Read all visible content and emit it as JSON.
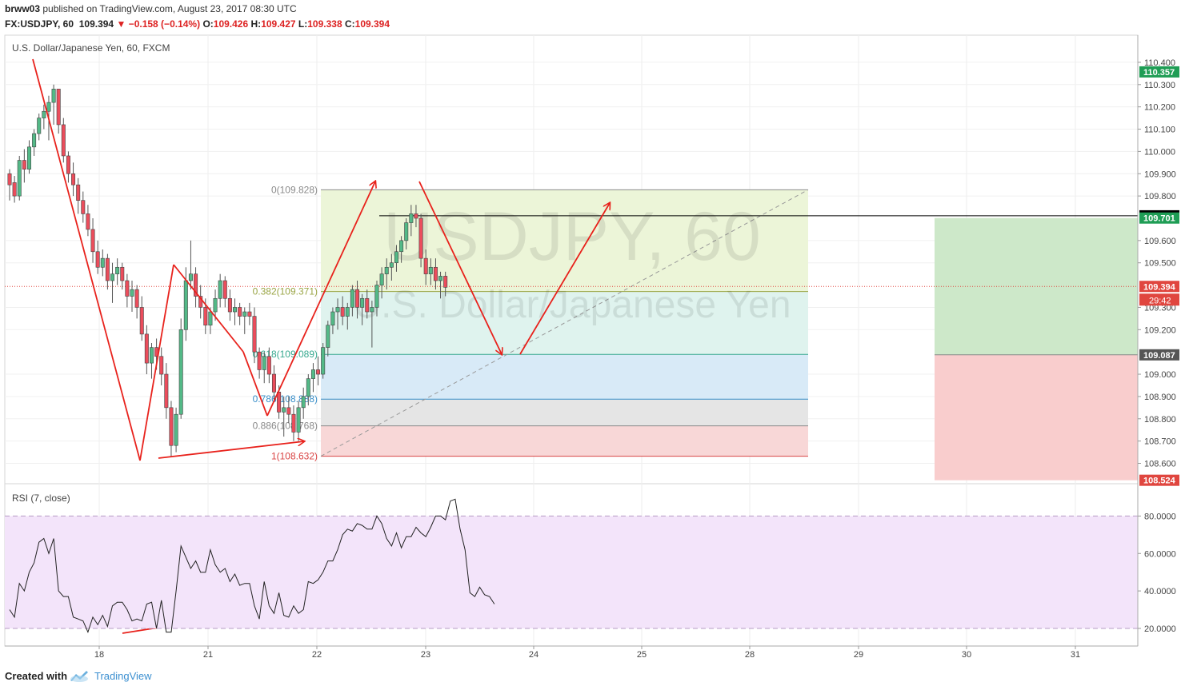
{
  "header": {
    "username": "brww03",
    "published_text": "published on TradingView.com, August 23, 2017 08:30 UTC",
    "symbol": "FX:USDJPY, 60",
    "last": "109.394",
    "change": "−0.158 (−0.14%)",
    "o_label": "O:",
    "o_value": "109.426",
    "h_label": "H:",
    "h_value": "109.427",
    "l_label": "L:",
    "l_value": "109.338",
    "c_label": "C:",
    "c_value": "109.394"
  },
  "footer": {
    "created_with": "Created with",
    "brand": "TradingView"
  },
  "chart_data": [
    {
      "type": "candlestick",
      "title": "U.S. Dollar/Japanese Yen, 60, FXCM",
      "watermark_symbol": "USDJPY, 60",
      "watermark_name": "U.S. Dollar/Japanese Yen",
      "x_ticks": [
        "18",
        "21",
        "22",
        "23",
        "24",
        "25",
        "28",
        "29",
        "30",
        "31"
      ],
      "y_ticks": [
        "110.400",
        "110.300",
        "110.200",
        "110.100",
        "110.000",
        "109.900",
        "109.800",
        "109.600",
        "109.500",
        "109.300",
        "109.200",
        "109.000",
        "108.900",
        "108.800",
        "108.700",
        "108.600"
      ],
      "ylim": [
        108.53,
        110.45
      ],
      "up_color": "#53b987",
      "down_color": "#eb4d5c",
      "ohlc": [
        [
          109.9,
          109.92,
          109.78,
          109.85
        ],
        [
          109.86,
          109.89,
          109.77,
          109.8
        ],
        [
          109.8,
          109.98,
          109.78,
          109.96
        ],
        [
          109.96,
          110.01,
          109.86,
          109.92
        ],
        [
          109.92,
          110.05,
          109.9,
          110.02
        ],
        [
          110.02,
          110.1,
          109.98,
          110.08
        ],
        [
          110.08,
          110.17,
          110.05,
          110.15
        ],
        [
          110.15,
          110.21,
          110.1,
          110.18
        ],
        [
          110.18,
          110.25,
          110.05,
          110.22
        ],
        [
          110.22,
          110.3,
          110.12,
          110.28
        ],
        [
          110.28,
          110.28,
          110.08,
          110.12
        ],
        [
          110.12,
          110.15,
          109.95,
          109.98
        ],
        [
          109.98,
          110.0,
          109.86,
          109.9
        ],
        [
          109.9,
          109.95,
          109.8,
          109.85
        ],
        [
          109.85,
          109.88,
          109.72,
          109.78
        ],
        [
          109.78,
          109.82,
          109.68,
          109.72
        ],
        [
          109.72,
          109.76,
          109.62,
          109.65
        ],
        [
          109.65,
          109.7,
          109.5,
          109.55
        ],
        [
          109.55,
          109.6,
          109.45,
          109.48
        ],
        [
          109.48,
          109.56,
          109.44,
          109.52
        ],
        [
          109.52,
          109.54,
          109.38,
          109.42
        ],
        [
          109.42,
          109.5,
          109.32,
          109.45
        ],
        [
          109.45,
          109.52,
          109.4,
          109.48
        ],
        [
          109.48,
          109.5,
          109.38,
          109.42
        ],
        [
          109.42,
          109.45,
          109.3,
          109.35
        ],
        [
          109.35,
          109.42,
          109.28,
          109.38
        ],
        [
          109.38,
          109.4,
          109.25,
          109.3
        ],
        [
          109.3,
          109.35,
          109.15,
          109.18
        ],
        [
          109.18,
          109.22,
          109.0,
          109.05
        ],
        [
          109.05,
          109.14,
          108.98,
          109.12
        ],
        [
          109.12,
          109.16,
          109.02,
          109.08
        ],
        [
          109.08,
          109.12,
          108.95,
          109.0
        ],
        [
          109.0,
          109.05,
          108.8,
          108.85
        ],
        [
          108.85,
          108.88,
          108.63,
          108.68
        ],
        [
          108.68,
          108.85,
          108.65,
          108.82
        ],
        [
          108.82,
          109.25,
          108.8,
          109.2
        ],
        [
          109.2,
          109.48,
          109.15,
          109.42
        ],
        [
          109.42,
          109.6,
          109.38,
          109.45
        ],
        [
          109.45,
          109.48,
          109.3,
          109.35
        ],
        [
          109.35,
          109.4,
          109.25,
          109.3
        ],
        [
          109.3,
          109.34,
          109.18,
          109.22
        ],
        [
          109.22,
          109.3,
          109.18,
          109.28
        ],
        [
          109.28,
          109.38,
          109.24,
          109.34
        ],
        [
          109.34,
          109.45,
          109.3,
          109.42
        ],
        [
          109.42,
          109.44,
          109.3,
          109.34
        ],
        [
          109.34,
          109.38,
          109.24,
          109.28
        ],
        [
          109.28,
          109.34,
          109.22,
          109.3
        ],
        [
          109.3,
          109.32,
          109.22,
          109.26
        ],
        [
          109.26,
          109.3,
          109.18,
          109.28
        ],
        [
          109.28,
          109.32,
          109.22,
          109.26
        ],
        [
          109.26,
          109.3,
          109.05,
          109.1
        ],
        [
          109.1,
          109.12,
          108.98,
          109.02
        ],
        [
          109.02,
          109.1,
          108.96,
          109.08
        ],
        [
          109.08,
          109.12,
          108.96,
          109.0
        ],
        [
          109.0,
          109.04,
          108.88,
          108.92
        ],
        [
          108.92,
          108.95,
          108.8,
          108.83
        ],
        [
          108.83,
          108.9,
          108.72,
          108.85
        ],
        [
          108.85,
          108.9,
          108.78,
          108.82
        ],
        [
          108.82,
          108.86,
          108.7,
          108.74
        ],
        [
          108.74,
          108.88,
          108.7,
          108.85
        ],
        [
          108.85,
          108.94,
          108.8,
          108.9
        ],
        [
          108.9,
          109.0,
          108.86,
          108.98
        ],
        [
          108.98,
          109.05,
          108.92,
          109.02
        ],
        [
          109.02,
          109.08,
          108.95,
          109.0
        ],
        [
          109.0,
          109.14,
          108.98,
          109.12
        ],
        [
          109.12,
          109.24,
          109.08,
          109.22
        ],
        [
          109.22,
          109.3,
          109.18,
          109.28
        ],
        [
          109.28,
          109.34,
          109.2,
          109.3
        ],
        [
          109.3,
          109.35,
          109.22,
          109.26
        ],
        [
          109.26,
          109.32,
          109.2,
          109.3
        ],
        [
          109.3,
          109.4,
          109.26,
          109.38
        ],
        [
          109.38,
          109.42,
          109.25,
          109.3
        ],
        [
          109.3,
          109.36,
          109.22,
          109.34
        ],
        [
          109.34,
          109.38,
          109.25,
          109.28
        ],
        [
          109.28,
          109.33,
          109.12,
          109.3
        ],
        [
          109.3,
          109.42,
          109.26,
          109.4
        ],
        [
          109.4,
          109.48,
          109.34,
          109.45
        ],
        [
          109.45,
          109.52,
          109.38,
          109.48
        ],
        [
          109.48,
          109.54,
          109.42,
          109.5
        ],
        [
          109.5,
          109.58,
          109.46,
          109.55
        ],
        [
          109.55,
          109.62,
          109.5,
          109.6
        ],
        [
          109.6,
          109.7,
          109.56,
          109.68
        ],
        [
          109.68,
          109.76,
          109.62,
          109.72
        ],
        [
          109.72,
          109.76,
          109.66,
          109.7
        ],
        [
          109.7,
          109.72,
          109.48,
          109.52
        ],
        [
          109.52,
          109.56,
          109.4,
          109.45
        ],
        [
          109.45,
          109.52,
          109.4,
          109.48
        ],
        [
          109.48,
          109.52,
          109.38,
          109.42
        ],
        [
          109.42,
          109.46,
          109.34,
          109.44
        ],
        [
          109.44,
          109.46,
          109.35,
          109.39
        ]
      ],
      "fibonacci": [
        {
          "label": "0(109.828)",
          "value": 109.828,
          "color": "#8a8a8a",
          "fill": "#ecf5d8"
        },
        {
          "label": "0.382(109.371)",
          "value": 109.371,
          "color": "#9aa545",
          "fill": "#dff3ee"
        },
        {
          "label": "0.618(109.089)",
          "value": 109.089,
          "color": "#35a88e",
          "fill": "#d8eaf7"
        },
        {
          "label": "0.786(108.888)",
          "value": 108.888,
          "color": "#3a8fc9",
          "fill": "#e5e5e5"
        },
        {
          "label": "0.886(108.768)",
          "value": 108.768,
          "color": "#888888",
          "fill": "#f8d7d7"
        },
        {
          "label": "1(108.632)",
          "value": 108.632,
          "color": "#d94343",
          "fill": null
        }
      ],
      "horizontal_line_value": 109.711,
      "current_price": 109.394,
      "price_labels": [
        {
          "text": "110.357",
          "value": 110.357,
          "color": "#1f9d55"
        },
        {
          "text": "109.711",
          "value": 109.711,
          "color": "#000000"
        },
        {
          "text": "109.701",
          "value": 109.701,
          "color": "#1f9d55"
        },
        {
          "text": "109.394",
          "value": 109.394,
          "color": "#e0463f"
        },
        {
          "text": "109.087",
          "value": 109.087,
          "color": "#555555"
        },
        {
          "text": "108.524",
          "value": 108.524,
          "color": "#e0463f"
        }
      ],
      "countdown": "29:42",
      "position_tool": {
        "profit_top": 109.701,
        "entry": 109.087,
        "stop": 108.524
      }
    },
    {
      "type": "line",
      "title": "RSI (7, close)",
      "y_ticks": [
        "80.0000",
        "60.0000",
        "40.0000",
        "20.0000"
      ],
      "ylim": [
        14,
        90
      ],
      "band": [
        20,
        80
      ],
      "values": [
        30,
        26,
        44,
        40,
        50,
        55,
        66,
        68,
        60,
        68,
        40,
        37,
        37,
        26,
        25,
        24,
        18,
        26,
        22,
        27,
        21,
        32,
        34,
        34,
        30,
        24,
        25,
        24,
        33,
        34,
        20,
        35,
        18,
        18,
        40,
        64,
        58,
        52,
        56,
        50,
        50,
        62,
        54,
        50,
        52,
        45,
        49,
        43,
        44,
        44,
        32,
        25,
        45,
        32,
        28,
        39,
        27,
        26,
        32,
        28,
        30,
        45,
        44,
        46,
        50,
        56,
        56,
        62,
        70,
        73,
        72,
        76,
        75,
        73,
        73,
        80,
        76,
        68,
        64,
        71,
        63,
        69,
        69,
        74,
        71,
        69,
        74,
        80,
        80,
        78,
        88,
        89,
        73,
        62,
        39,
        37,
        42,
        38,
        37,
        33
      ]
    }
  ]
}
